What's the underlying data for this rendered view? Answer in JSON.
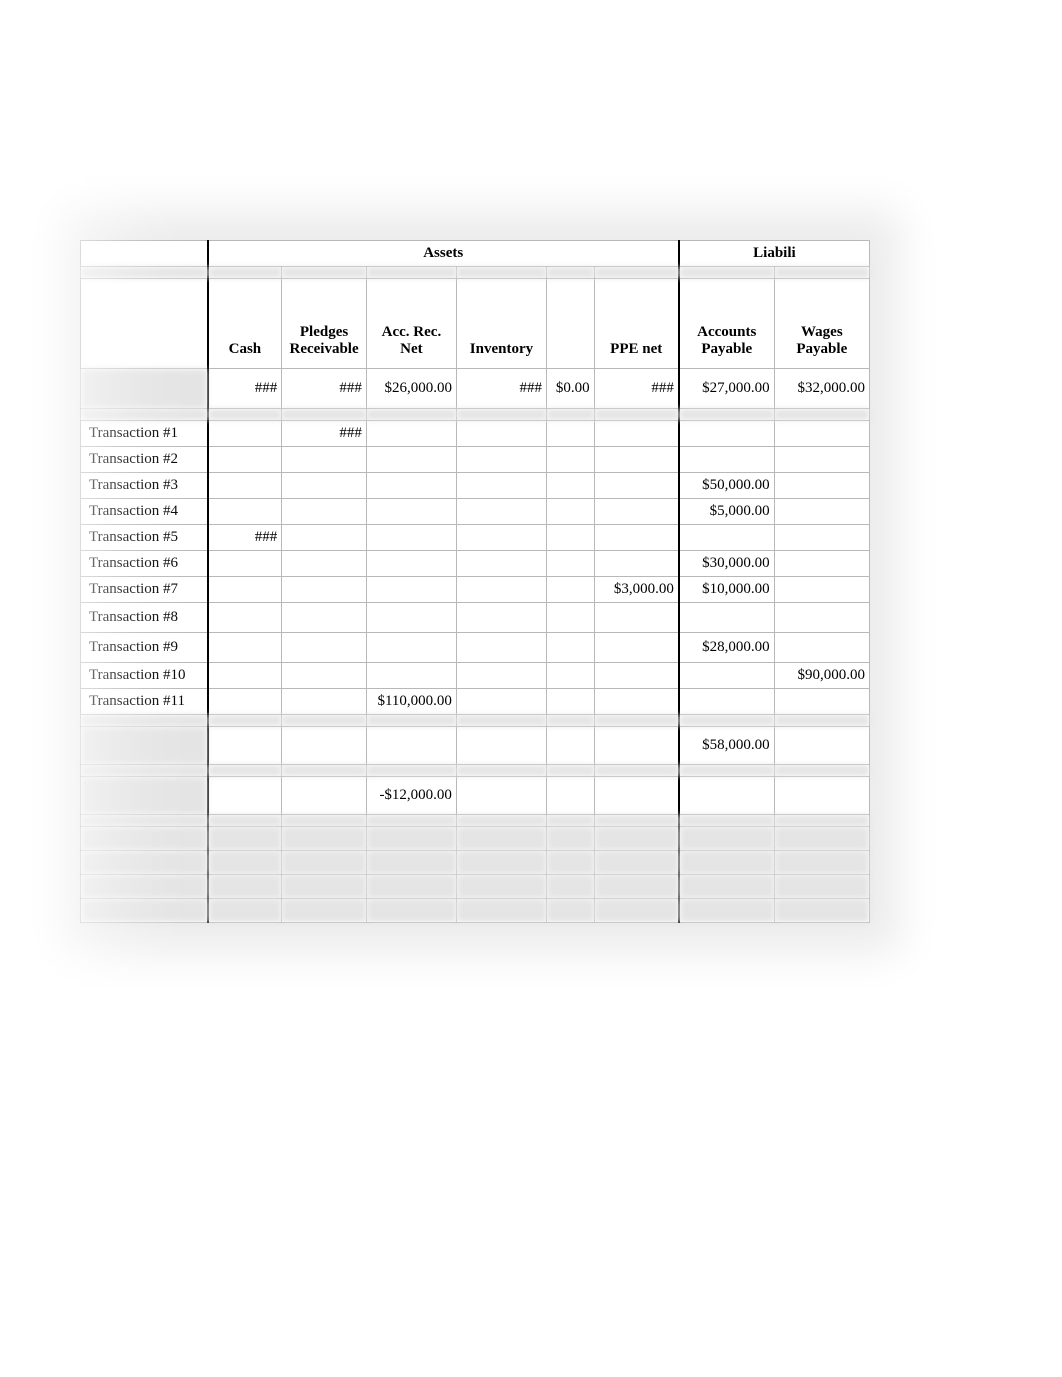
{
  "groupHeaders": {
    "assets": "Assets",
    "liabilities": "Liabili"
  },
  "columns": {
    "label": "",
    "cash": "Cash",
    "pledges": "Pledges Receivable",
    "accrec": "Acc. Rec. Net",
    "inventory": "Inventory",
    "blankA": "",
    "ppe": "PPE net",
    "ap": "Accounts Payable",
    "wages": "Wages Payable"
  },
  "colWidths": {
    "label": 120,
    "cash": 70,
    "pledges": 80,
    "accrec": 85,
    "inventory": 85,
    "blankA": 45,
    "ppe": 80,
    "ap": 90,
    "wages": 90
  },
  "openingRow": {
    "cash": "###",
    "pledges": "###",
    "accrec": "$26,000.00",
    "inventory": "###",
    "blankA": "$0.00",
    "ppe": "###",
    "ap": "$27,000.00",
    "wages": "$32,000.00"
  },
  "transactions": [
    {
      "label": "Transaction #1",
      "cash": "",
      "pledges": "###",
      "accrec": "",
      "inventory": "",
      "blankA": "",
      "ppe": "",
      "ap": "",
      "wages": ""
    },
    {
      "label": "Transaction #2",
      "cash": "",
      "pledges": "",
      "accrec": "",
      "inventory": "",
      "blankA": "",
      "ppe": "",
      "ap": "",
      "wages": ""
    },
    {
      "label": "Transaction #3",
      "cash": "",
      "pledges": "",
      "accrec": "",
      "inventory": "",
      "blankA": "",
      "ppe": "",
      "ap": "$50,000.00",
      "wages": ""
    },
    {
      "label": "Transaction #4",
      "cash": "",
      "pledges": "",
      "accrec": "",
      "inventory": "",
      "blankA": "",
      "ppe": "",
      "ap": "$5,000.00",
      "wages": ""
    },
    {
      "label": "Transaction #5",
      "cash": "###",
      "pledges": "",
      "accrec": "",
      "inventory": "",
      "blankA": "",
      "ppe": "",
      "ap": "",
      "wages": ""
    },
    {
      "label": "Transaction #6",
      "cash": "",
      "pledges": "",
      "accrec": "",
      "inventory": "",
      "blankA": "",
      "ppe": "",
      "ap": "$30,000.00",
      "wages": ""
    },
    {
      "label": "Transaction #7",
      "cash": "",
      "pledges": "",
      "accrec": "",
      "inventory": "",
      "blankA": "",
      "ppe": "$3,000.00",
      "ap": "$10,000.00",
      "wages": ""
    },
    {
      "label": "Transaction #8",
      "cash": "",
      "pledges": "",
      "accrec": "",
      "inventory": "",
      "blankA": "",
      "ppe": "",
      "ap": "",
      "wages": ""
    },
    {
      "label": "Transaction #9",
      "cash": "",
      "pledges": "",
      "accrec": "",
      "inventory": "",
      "blankA": "",
      "ppe": "",
      "ap": "$28,000.00",
      "wages": ""
    },
    {
      "label": "Transaction #10",
      "cash": "",
      "pledges": "",
      "accrec": "",
      "inventory": "",
      "blankA": "",
      "ppe": "",
      "ap": "",
      "wages": "$90,000.00"
    },
    {
      "label": "Transaction #11",
      "cash": "",
      "pledges": "",
      "accrec": "$110,000.00",
      "inventory": "",
      "blankA": "",
      "ppe": "",
      "ap": "",
      "wages": ""
    }
  ],
  "summaryRows": [
    {
      "label": "",
      "cash": "",
      "pledges": "",
      "accrec": "",
      "inventory": "",
      "blankA": "",
      "ppe": "",
      "ap": "$58,000.00",
      "wages": ""
    },
    {
      "label": "",
      "cash": "",
      "pledges": "",
      "accrec": "-$12,000.00",
      "inventory": "",
      "blankA": "",
      "ppe": "",
      "ap": "",
      "wages": ""
    }
  ],
  "colors": {
    "border": "#b8b8b8",
    "thickBorder": "#000000",
    "background": "#ffffff",
    "blurBg": "#e4e4e4",
    "text": "#000000"
  },
  "typography": {
    "family": "Times New Roman",
    "cellFontSize": 15,
    "headerFontWeight": "bold"
  }
}
